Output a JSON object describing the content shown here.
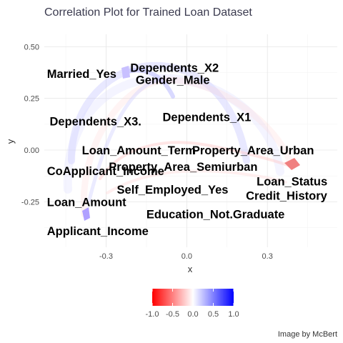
{
  "chart_data": {
    "type": "scatter",
    "title": "Correlation Plot for Trained Loan Dataset",
    "xlabel": "x",
    "ylabel": "y",
    "xlim": [
      -0.53,
      0.56
    ],
    "ylim": [
      -0.47,
      0.56
    ],
    "x_ticks": [
      {
        "value": -0.3,
        "label": "-0.3"
      },
      {
        "value": 0.0,
        "label": "0.0"
      },
      {
        "value": 0.3,
        "label": "0.3"
      }
    ],
    "y_ticks": [
      {
        "value": 0.5,
        "label": "0.50"
      },
      {
        "value": 0.25,
        "label": "0.25"
      },
      {
        "value": 0.0,
        "label": "0.00"
      },
      {
        "value": -0.25,
        "label": "-0.25"
      }
    ],
    "grid": true,
    "points": [
      {
        "label": "Dependents_X2",
        "x": -0.21,
        "y": 0.4
      },
      {
        "label": "Married_Yes",
        "x": -0.52,
        "y": 0.37
      },
      {
        "label": "Gender_Male",
        "x": -0.19,
        "y": 0.34
      },
      {
        "label": "Dependents_X3.",
        "x": -0.51,
        "y": 0.14
      },
      {
        "label": "Dependents_X1",
        "x": -0.09,
        "y": 0.16
      },
      {
        "label": "Loan_Amount_Term",
        "x": -0.39,
        "y": 0.0
      },
      {
        "label": "Property_Area_Urban",
        "x": 0.02,
        "y": 0.0
      },
      {
        "label": "CoApplicant_Income",
        "x": -0.52,
        "y": -0.1
      },
      {
        "label": "Property_Area_Semiurban",
        "x": -0.29,
        "y": -0.08
      },
      {
        "label": "Loan_Status",
        "x": 0.26,
        "y": -0.15
      },
      {
        "label": "Self_Employed_Yes",
        "x": -0.26,
        "y": -0.19
      },
      {
        "label": "Credit_History",
        "x": 0.22,
        "y": -0.22
      },
      {
        "label": "Loan_Amount",
        "x": -0.52,
        "y": -0.25
      },
      {
        "label": "Education_Not.Graduate",
        "x": -0.15,
        "y": -0.31
      },
      {
        "label": "Applicant_Income",
        "x": -0.52,
        "y": -0.39
      }
    ],
    "legend": {
      "position": "bottom",
      "colors": [
        "#ff0000",
        "#ffffff",
        "#0000ff"
      ],
      "min": -1.0,
      "max": 1.0,
      "ticks": [
        "-1.0",
        "-0.5",
        "0.0",
        "0.5",
        "1.0"
      ]
    }
  },
  "caption": "Image by McBert"
}
